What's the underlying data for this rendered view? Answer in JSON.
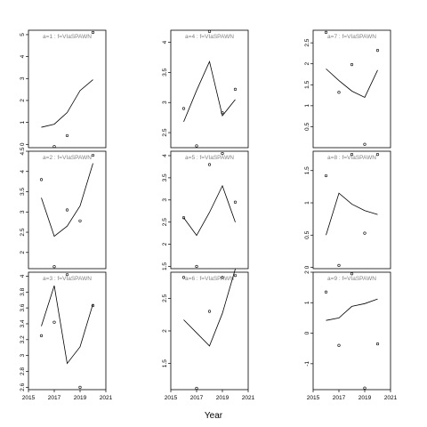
{
  "chart_data": {
    "type": "scatter",
    "xlabel": "Year",
    "ylabel": "",
    "panels": [
      {
        "title": "a=1 : f=VIaSPAWN",
        "xlim": [
          2015,
          2021
        ],
        "ylim": [
          -0.15,
          5.2
        ],
        "yticks": [
          0,
          1,
          2,
          3,
          4,
          5
        ],
        "points_x": [
          2017,
          2018,
          2020
        ],
        "points_y": [
          -0.1,
          0.4,
          5.1
        ],
        "line_x": [
          2016,
          2017,
          2018,
          2019,
          2020
        ],
        "line_y": [
          0.78,
          0.92,
          1.45,
          2.45,
          2.95
        ]
      },
      {
        "title": "a=2 : f=VIaSPAWN",
        "xlim": [
          2015,
          2021
        ],
        "ylim": [
          1.6,
          4.5
        ],
        "yticks": [
          2.0,
          2.5,
          3.0,
          3.5,
          4.0,
          4.5
        ],
        "points_x": [
          2016,
          2017,
          2018,
          2019,
          2020
        ],
        "points_y": [
          3.8,
          1.65,
          3.05,
          2.78,
          4.4
        ],
        "line_x": [
          2016,
          2017,
          2018,
          2019,
          2020
        ],
        "line_y": [
          3.35,
          2.4,
          2.65,
          3.15,
          4.2
        ]
      },
      {
        "title": "a=3 : f=VIaSPAWN",
        "xlim": [
          2015,
          2021
        ],
        "ylim": [
          2.57,
          4.05
        ],
        "yticks": [
          2.6,
          2.8,
          3.0,
          3.2,
          3.4,
          3.6,
          3.8,
          4.0
        ],
        "points_x": [
          2016,
          2017,
          2018,
          2019,
          2020
        ],
        "points_y": [
          3.25,
          3.42,
          4.02,
          2.6,
          3.63
        ],
        "line_x": [
          2016,
          2017,
          2018,
          2019,
          2020
        ],
        "line_y": [
          3.37,
          3.88,
          2.9,
          3.11,
          3.65
        ]
      },
      {
        "title": "a=4 : f=VIaSPAWN",
        "xlim": [
          2015,
          2021
        ],
        "ylim": [
          2.25,
          4.2
        ],
        "yticks": [
          2.5,
          3.0,
          3.5,
          4.0
        ],
        "points_x": [
          2016,
          2017,
          2018,
          2019,
          2020
        ],
        "points_y": [
          2.9,
          2.28,
          4.18,
          2.83,
          3.22
        ],
        "line_x": [
          2016,
          2017,
          2018,
          2019,
          2020
        ],
        "line_y": [
          2.68,
          3.2,
          3.68,
          2.78,
          3.05
        ]
      },
      {
        "title": "a=5 : f=VIaSPAWN",
        "xlim": [
          2015,
          2021
        ],
        "ylim": [
          1.45,
          4.1
        ],
        "yticks": [
          1.5,
          2.0,
          2.5,
          3.0,
          3.5,
          4.0
        ],
        "points_x": [
          2016,
          2017,
          2018,
          2019,
          2020
        ],
        "points_y": [
          2.6,
          1.5,
          3.8,
          4.05,
          2.95
        ],
        "line_x": [
          2016,
          2017,
          2018,
          2019,
          2020
        ],
        "line_y": [
          2.6,
          2.2,
          2.72,
          3.32,
          2.5
        ]
      },
      {
        "title": "a=6 : f=VIaSPAWN",
        "xlim": [
          2015,
          2021
        ],
        "ylim": [
          1.1,
          2.9
        ],
        "yticks": [
          1.5,
          2.0,
          2.5
        ],
        "points_x": [
          2016,
          2017,
          2018,
          2019,
          2020
        ],
        "points_y": [
          2.82,
          1.12,
          2.3,
          2.82,
          2.85
        ],
        "line_x": [
          2016,
          2017,
          2018,
          2019,
          2020
        ],
        "line_y": [
          2.17,
          1.97,
          1.77,
          2.27,
          2.95
        ]
      },
      {
        "title": "a=7 : f=VIaSPAWN",
        "xlim": [
          2015,
          2021
        ],
        "ylim": [
          0.0,
          2.8
        ],
        "yticks": [
          0.5,
          1.0,
          1.5,
          2.0,
          2.5
        ],
        "points_x": [
          2016,
          2017,
          2018,
          2019,
          2020
        ],
        "points_y": [
          2.75,
          1.32,
          1.98,
          0.08,
          2.32
        ],
        "line_x": [
          2016,
          2017,
          2018,
          2019,
          2020
        ],
        "line_y": [
          1.88,
          1.6,
          1.35,
          1.2,
          1.85
        ]
      },
      {
        "title": "a=8 : f=VIaSPAWN",
        "xlim": [
          2015,
          2021
        ],
        "ylim": [
          -0.02,
          1.8
        ],
        "yticks": [
          0.0,
          0.5,
          1.0,
          1.5
        ],
        "points_x": [
          2016,
          2017,
          2018,
          2019,
          2020
        ],
        "points_y": [
          1.42,
          0.03,
          1.75,
          0.53,
          1.75
        ],
        "line_x": [
          2016,
          2017,
          2018,
          2019,
          2020
        ],
        "line_y": [
          0.5,
          1.15,
          0.98,
          0.88,
          0.82
        ]
      },
      {
        "title": "a=9 : f=VIaSPAWN",
        "xlim": [
          2015,
          2021
        ],
        "ylim": [
          -1.85,
          2.0
        ],
        "yticks": [
          -1,
          0,
          1,
          2
        ],
        "points_x": [
          2016,
          2017,
          2018,
          2019,
          2020
        ],
        "points_y": [
          1.35,
          -0.4,
          1.95,
          -1.8,
          -0.35
        ],
        "line_x": [
          2016,
          2017,
          2018,
          2019,
          2020
        ],
        "line_y": [
          0.42,
          0.5,
          0.88,
          0.97,
          1.12
        ]
      }
    ],
    "xticks": [
      2015,
      2017,
      2019,
      2021
    ]
  }
}
